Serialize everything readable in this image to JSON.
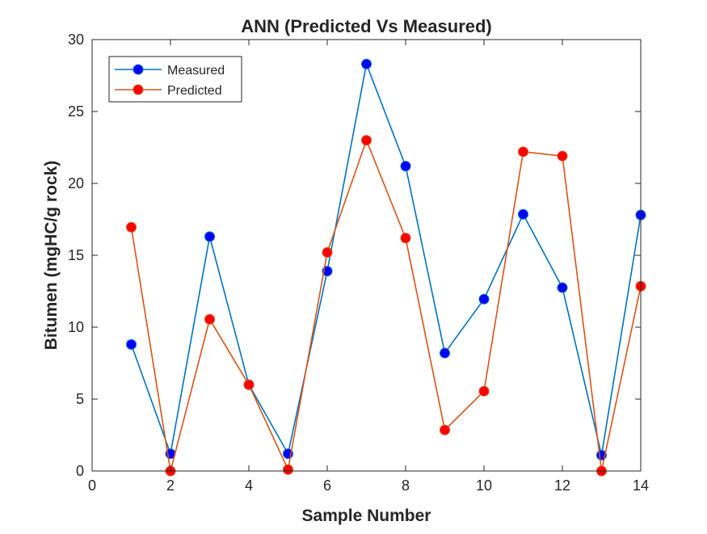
{
  "chart_data": {
    "type": "line",
    "title": "ANN (Predicted Vs Measured)",
    "xlabel": "Sample Number",
    "ylabel": "Bitumen (mgHC/g rock)",
    "xlim": [
      0,
      14
    ],
    "ylim": [
      0,
      30
    ],
    "xticks": [
      0,
      2,
      4,
      6,
      8,
      10,
      12,
      14
    ],
    "yticks": [
      0,
      5,
      10,
      15,
      20,
      25,
      30
    ],
    "grid": false,
    "legend_position": "top-left",
    "x": [
      1,
      2,
      3,
      4,
      5,
      6,
      7,
      8,
      9,
      10,
      11,
      12,
      13,
      14
    ],
    "series": [
      {
        "name": "Measured",
        "values": [
          8.8,
          1.2,
          16.3,
          6.0,
          1.2,
          13.9,
          28.3,
          21.2,
          8.2,
          11.95,
          17.85,
          12.75,
          1.1,
          17.8
        ],
        "line_color": "#0072BD",
        "marker_color": "#0000FF"
      },
      {
        "name": "Predicted",
        "values": [
          16.95,
          0.0,
          10.55,
          6.0,
          0.1,
          15.2,
          23.0,
          16.2,
          2.85,
          5.55,
          22.2,
          21.9,
          0.0,
          12.85
        ],
        "line_color": "#D95319",
        "marker_color": "#FF0000"
      }
    ]
  }
}
